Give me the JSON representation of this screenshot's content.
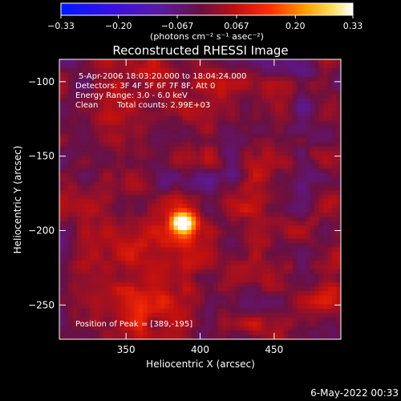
{
  "chart_data": {
    "type": "heatmap",
    "title": "Reconstructed RHESSI Image",
    "xlabel": "Heliocentric X (arcsec)",
    "ylabel": "Heliocentric Y (arcsec)",
    "xlim": [
      305,
      495
    ],
    "ylim": [
      -273,
      -85
    ],
    "x_ticks": [
      350,
      400,
      450
    ],
    "y_ticks": [
      -100,
      -150,
      -200,
      -250
    ],
    "x_tick_labels": [
      "350",
      "400",
      "450"
    ],
    "y_tick_labels": [
      "−100",
      "−150",
      "−200",
      "−250"
    ],
    "colorbar": {
      "range": [
        -0.33,
        0.33
      ],
      "tick_values": [
        -0.33,
        -0.2,
        -0.067,
        0.067,
        0.2,
        0.33
      ],
      "tick_labels": [
        "−0.33",
        "−0.20",
        "−0.067",
        "0.067",
        "0.20",
        "0.33"
      ],
      "unit_label": "(photons cm⁻² s⁻¹ asec⁻²)"
    },
    "peak": {
      "x": 389,
      "y": -195,
      "value": 0.33
    },
    "annotations": [
      "5-Apr-2006 18:03:20.000 to 18:04:24.000",
      "Detectors: 3F 4F 5F 6F 7F 8F, Att 0",
      "Energy Range: 3.0 - 6.0 keV",
      "Clean",
      "Total counts: 2.99E+03",
      "Position of Peak = [389,-195]"
    ],
    "grid": false
  },
  "footer": {
    "timestamp": "6-May-2022 00:33"
  }
}
